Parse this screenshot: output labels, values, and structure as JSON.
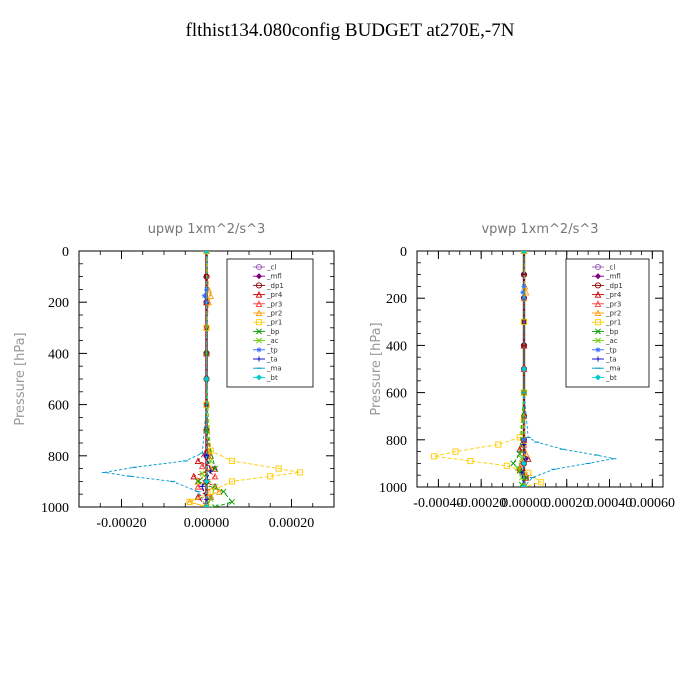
{
  "title": "flthist134.080config  BUDGET at270E,-7N",
  "chart_data": [
    {
      "type": "line",
      "title": "upwp   1xm^2/s^3",
      "ylabel": "Pressure [hPa]",
      "xlabel": "",
      "ylim": [
        1000,
        0
      ],
      "xlim": [
        -0.0003,
        0.0003
      ],
      "xticks": [
        "-0.00020",
        "0.00000",
        "0.00020"
      ],
      "xtick_values": [
        -0.0002,
        0,
        0.0002
      ],
      "yticks": [
        "0",
        "200",
        "400",
        "600",
        "800",
        "1000"
      ],
      "ytick_values": [
        0,
        200,
        400,
        600,
        800,
        1000
      ],
      "legend_position": "top-right",
      "series": [
        {
          "name": "_cl",
          "color": "#9b59b6",
          "x": [
            0,
            0,
            0,
            0,
            0,
            0,
            0,
            0,
            0,
            0
          ],
          "y": [
            0,
            100,
            200,
            300,
            400,
            500,
            600,
            700,
            800,
            1000
          ]
        },
        {
          "name": "_mfl",
          "color": "#800080",
          "x": [
            0,
            0,
            0,
            0,
            0,
            0,
            0,
            0,
            0,
            0
          ],
          "y": [
            0,
            100,
            200,
            300,
            400,
            500,
            600,
            700,
            800,
            1000
          ]
        },
        {
          "name": "_dp1",
          "color": "#8b0000",
          "x": [
            0,
            0,
            0,
            0,
            0,
            0,
            0,
            0,
            0,
            0,
            0
          ],
          "y": [
            0,
            100,
            200,
            300,
            400,
            500,
            600,
            700,
            800,
            900,
            1000
          ]
        },
        {
          "name": "_pr4",
          "color": "#cc0000",
          "x": [
            0,
            0,
            0,
            0,
            0,
            -2e-05,
            2e-05,
            -3e-05,
            2e-05,
            -2e-05,
            0
          ],
          "y": [
            0,
            200,
            400,
            600,
            780,
            820,
            850,
            880,
            920,
            960,
            1000
          ]
        },
        {
          "name": "_pr3",
          "color": "#ff3333",
          "x": [
            0,
            0,
            0,
            1e-05,
            -1e-05,
            2e-05,
            -2e-05,
            1e-05,
            0
          ],
          "y": [
            0,
            400,
            700,
            800,
            840,
            880,
            920,
            960,
            1000
          ]
        },
        {
          "name": "_pr2",
          "color": "#ff9900",
          "x": [
            0,
            5e-06,
            1e-05,
            5e-06,
            0,
            0,
            1e-05,
            -2e-05,
            3e-05,
            -4e-05,
            0
          ],
          "y": [
            0,
            150,
            175,
            200,
            300,
            700,
            850,
            900,
            940,
            980,
            1000
          ]
        },
        {
          "name": "_pr1",
          "color": "#ffcc00",
          "x": [
            0,
            0,
            0,
            1e-05,
            6e-05,
            0.00017,
            0.00022,
            0.00015,
            6e-05,
            1e-05,
            -4e-05,
            0
          ],
          "y": [
            0,
            300,
            600,
            780,
            820,
            850,
            865,
            880,
            900,
            940,
            980,
            1000
          ]
        },
        {
          "name": "_bp",
          "color": "#009900",
          "x": [
            0,
            0,
            0,
            2e-05,
            -2e-05,
            4e-05,
            6e-05,
            2e-05,
            0
          ],
          "y": [
            0,
            400,
            700,
            850,
            900,
            940,
            980,
            1000,
            1000
          ]
        },
        {
          "name": "_ac",
          "color": "#66cc00",
          "x": [
            0,
            0,
            1e-05,
            -1e-05,
            2e-05,
            1e-05,
            0
          ],
          "y": [
            0,
            500,
            820,
            870,
            920,
            970,
            1000
          ]
        },
        {
          "name": "_tp",
          "color": "#3366ff",
          "x": [
            0,
            0,
            -5e-06,
            0,
            0,
            0,
            0
          ],
          "y": [
            0,
            150,
            175,
            200,
            500,
            800,
            1000
          ]
        },
        {
          "name": "_ta",
          "color": "#0000cc",
          "x": [
            0,
            0,
            0,
            1e-05,
            -1e-05,
            0,
            0
          ],
          "y": [
            0,
            500,
            800,
            860,
            920,
            970,
            1000
          ]
        },
        {
          "name": "_ma",
          "color": "#0099cc",
          "x": [
            0,
            0,
            -1e-05,
            -5e-05,
            -0.00017,
            -0.00024,
            -0.00018,
            -8e-05,
            -2e-05,
            0
          ],
          "y": [
            0,
            600,
            790,
            820,
            845,
            865,
            880,
            900,
            940,
            1000
          ]
        },
        {
          "name": "_bt",
          "color": "#00cccc",
          "x": [
            0,
            0,
            0,
            0
          ],
          "y": [
            0,
            500,
            900,
            1000
          ]
        }
      ]
    },
    {
      "type": "line",
      "title": "vpwp   1xm^2/s^3",
      "ylabel": "Pressure [hPa]",
      "xlabel": "",
      "ylim": [
        1000,
        0
      ],
      "xlim": [
        -0.0005,
        0.00065
      ],
      "xticks": [
        "-0.00040",
        "-0.00020",
        "0.00000",
        "0.00020",
        "0.00040",
        "0.00060"
      ],
      "xtick_values": [
        -0.0004,
        -0.0002,
        0,
        0.0002,
        0.0004,
        0.0006
      ],
      "yticks": [
        "0",
        "200",
        "400",
        "600",
        "800",
        "1000"
      ],
      "ytick_values": [
        0,
        200,
        400,
        600,
        800,
        1000
      ],
      "legend_position": "top-right",
      "series": [
        {
          "name": "_cl",
          "color": "#9b59b6",
          "x": [
            0,
            0,
            0,
            0,
            0,
            0,
            0,
            0,
            0,
            0
          ],
          "y": [
            0,
            100,
            200,
            300,
            400,
            500,
            600,
            700,
            800,
            1000
          ]
        },
        {
          "name": "_mfl",
          "color": "#800080",
          "x": [
            0,
            0,
            0,
            0,
            0,
            0,
            0,
            0,
            0,
            0
          ],
          "y": [
            0,
            100,
            200,
            300,
            400,
            500,
            600,
            700,
            800,
            1000
          ]
        },
        {
          "name": "_dp1",
          "color": "#8b0000",
          "x": [
            0,
            0,
            0,
            0,
            0,
            0,
            0,
            0,
            0,
            0,
            0
          ],
          "y": [
            0,
            100,
            200,
            300,
            400,
            500,
            600,
            700,
            800,
            900,
            1000
          ]
        },
        {
          "name": "_pr4",
          "color": "#cc0000",
          "x": [
            0,
            0,
            0,
            -2e-05,
            2e-05,
            -2e-05,
            1e-05,
            0
          ],
          "y": [
            0,
            400,
            800,
            840,
            880,
            920,
            960,
            1000
          ]
        },
        {
          "name": "_pr3",
          "color": "#ff3333",
          "x": [
            0,
            0,
            0,
            1e-05,
            -1e-05,
            1e-05,
            0
          ],
          "y": [
            0,
            500,
            820,
            860,
            900,
            950,
            1000
          ]
        },
        {
          "name": "_pr2",
          "color": "#ff9900",
          "x": [
            0,
            5e-06,
            1e-05,
            0,
            0,
            1e-05,
            -2e-05,
            0
          ],
          "y": [
            0,
            150,
            175,
            200,
            700,
            860,
            930,
            1000
          ]
        },
        {
          "name": "_pr1",
          "color": "#ffcc00",
          "x": [
            0,
            0,
            0,
            -2e-05,
            -0.00012,
            -0.00032,
            -0.00042,
            -0.00025,
            -8e-05,
            2e-05,
            8e-05,
            0
          ],
          "y": [
            0,
            300,
            600,
            790,
            820,
            850,
            870,
            890,
            910,
            940,
            980,
            1000
          ]
        },
        {
          "name": "_bp",
          "color": "#009900",
          "x": [
            0,
            0,
            -2e-05,
            -5e-05,
            -2e-05,
            1e-05,
            -1e-05,
            0
          ],
          "y": [
            0,
            600,
            860,
            900,
            930,
            960,
            990,
            1000
          ]
        },
        {
          "name": "_ac",
          "color": "#66cc00",
          "x": [
            0,
            0,
            -1e-05,
            -3e-05,
            -1e-05,
            0
          ],
          "y": [
            0,
            600,
            880,
            920,
            960,
            1000
          ]
        },
        {
          "name": "_tp",
          "color": "#3366ff",
          "x": [
            0,
            0,
            -5e-06,
            0,
            0,
            0,
            0
          ],
          "y": [
            0,
            150,
            175,
            200,
            500,
            800,
            1000
          ]
        },
        {
          "name": "_ta",
          "color": "#0000cc",
          "x": [
            0,
            0,
            0,
            1e-05,
            -1e-05,
            0
          ],
          "y": [
            0,
            500,
            820,
            880,
            940,
            1000
          ]
        },
        {
          "name": "_ma",
          "color": "#0099cc",
          "x": [
            0,
            0,
            2e-05,
            6e-05,
            0.00018,
            0.00034,
            0.00042,
            0.0003,
            0.00014,
            4e-05,
            0
          ],
          "y": [
            0,
            600,
            790,
            810,
            840,
            865,
            880,
            900,
            925,
            960,
            1000
          ]
        },
        {
          "name": "_bt",
          "color": "#00cccc",
          "x": [
            0,
            0,
            0,
            0
          ],
          "y": [
            0,
            500,
            900,
            1000
          ]
        }
      ]
    }
  ]
}
